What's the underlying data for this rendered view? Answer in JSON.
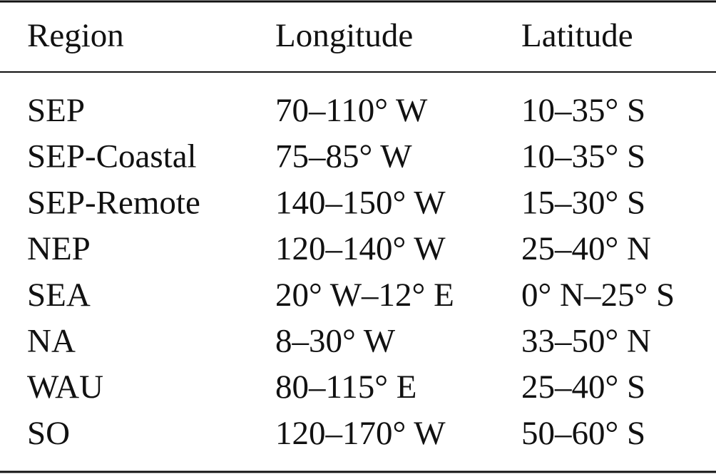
{
  "table": {
    "header": [
      "Region",
      "Longitude",
      "Latitude"
    ],
    "rows": [
      [
        "SEP",
        "70–110° W",
        "10–35° S"
      ],
      [
        "SEP-Coastal",
        "75–85° W",
        "10–35° S"
      ],
      [
        "SEP-Remote",
        "140–150° W",
        "15–30° S"
      ],
      [
        "NEP",
        "120–140° W",
        "25–40° N"
      ],
      [
        "SEA",
        "20° W–12° E",
        "0° N–25° S"
      ],
      [
        "NA",
        "8–30° W",
        "33–50° N"
      ],
      [
        "WAU",
        "80–115° E",
        "25–40° S"
      ],
      [
        "SO",
        "120–170° W",
        "50–60° S"
      ]
    ]
  }
}
